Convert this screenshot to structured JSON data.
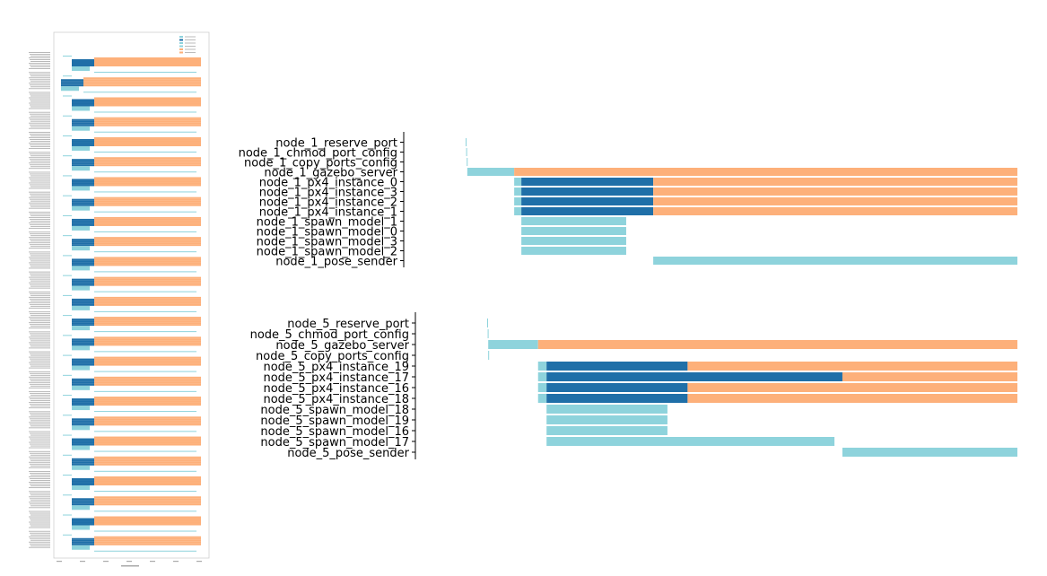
{
  "chart_data": [
    {
      "type": "gantt",
      "view": "overview",
      "title": "",
      "xlabel": "",
      "ylabel": "",
      "legend": {
        "placement": "top-right"
      },
      "series_colors": {
        "setup": "#8ed3dc",
        "px4": "#1f6fa8",
        "gazebo": "#fdb07a"
      },
      "groups": 25,
      "note_values": "Overview thumbnail; labels too small to read."
    },
    {
      "type": "gantt",
      "view": "detail",
      "title": "",
      "tasks": [
        {
          "label": "node_1_reserve_port",
          "segments": [
            {
              "start": 0.0,
              "end": 0.1,
              "kind": "setup"
            }
          ]
        },
        {
          "label": "node_1_chmod_port_config",
          "segments": [
            {
              "start": 0.1,
              "end": 0.2,
              "kind": "setup"
            }
          ]
        },
        {
          "label": "node_1_copy_ports_config",
          "segments": [
            {
              "start": 0.2,
              "end": 0.3,
              "kind": "setup"
            }
          ]
        },
        {
          "label": "node_1_gazebo_server",
          "segments": [
            {
              "start": 0.3,
              "end": 8.8,
              "kind": "setup"
            },
            {
              "start": 8.8,
              "end": 100.0,
              "kind": "gazebo"
            }
          ]
        },
        {
          "label": "node_1_px4_instance_0",
          "segments": [
            {
              "start": 8.8,
              "end": 10.1,
              "kind": "setup"
            },
            {
              "start": 10.1,
              "end": 34.0,
              "kind": "px4"
            },
            {
              "start": 34.0,
              "end": 100.0,
              "kind": "gazebo"
            }
          ]
        },
        {
          "label": "node_1_px4_instance_3",
          "segments": [
            {
              "start": 8.8,
              "end": 10.1,
              "kind": "setup"
            },
            {
              "start": 10.1,
              "end": 34.0,
              "kind": "px4"
            },
            {
              "start": 34.0,
              "end": 100.0,
              "kind": "gazebo"
            }
          ]
        },
        {
          "label": "node_1_px4_instance_2",
          "segments": [
            {
              "start": 8.8,
              "end": 10.1,
              "kind": "setup"
            },
            {
              "start": 10.1,
              "end": 34.0,
              "kind": "px4"
            },
            {
              "start": 34.0,
              "end": 100.0,
              "kind": "gazebo"
            }
          ]
        },
        {
          "label": "node_1_px4_instance_1",
          "segments": [
            {
              "start": 8.8,
              "end": 10.1,
              "kind": "setup"
            },
            {
              "start": 10.1,
              "end": 34.0,
              "kind": "px4"
            },
            {
              "start": 34.0,
              "end": 100.0,
              "kind": "gazebo"
            }
          ]
        },
        {
          "label": "node_1_spawn_model_1",
          "segments": [
            {
              "start": 10.1,
              "end": 29.1,
              "kind": "setup"
            }
          ]
        },
        {
          "label": "node_1_spawn_model_0",
          "segments": [
            {
              "start": 10.1,
              "end": 29.1,
              "kind": "setup"
            }
          ]
        },
        {
          "label": "node_1_spawn_model_3",
          "segments": [
            {
              "start": 10.1,
              "end": 29.1,
              "kind": "setup"
            }
          ]
        },
        {
          "label": "node_1_spawn_model_2",
          "segments": [
            {
              "start": 10.1,
              "end": 29.1,
              "kind": "setup"
            }
          ]
        },
        {
          "label": "node_1_pose_sender",
          "segments": [
            {
              "start": 34.0,
              "end": 100.0,
              "kind": "setup"
            }
          ]
        }
      ]
    },
    {
      "type": "gantt",
      "view": "detail",
      "title": "",
      "tasks": [
        {
          "label": "node_5_reserve_port",
          "segments": [
            {
              "start": 0.0,
              "end": 0.1,
              "kind": "setup"
            }
          ]
        },
        {
          "label": "node_5_chmod_port_config",
          "segments": [
            {
              "start": 0.1,
              "end": 0.2,
              "kind": "setup"
            }
          ]
        },
        {
          "label": "node_5_gazebo_server",
          "segments": [
            {
              "start": 0.2,
              "end": 9.6,
              "kind": "setup"
            },
            {
              "start": 9.6,
              "end": 100.0,
              "kind": "gazebo"
            }
          ]
        },
        {
          "label": "node_5_copy_ports_config",
          "segments": [
            {
              "start": 0.2,
              "end": 0.3,
              "kind": "setup"
            }
          ]
        },
        {
          "label": "node_5_px4_instance_19",
          "segments": [
            {
              "start": 9.6,
              "end": 11.2,
              "kind": "setup"
            },
            {
              "start": 11.2,
              "end": 37.8,
              "kind": "px4"
            },
            {
              "start": 37.8,
              "end": 100.0,
              "kind": "gazebo"
            }
          ]
        },
        {
          "label": "node_5_px4_instance_17",
          "segments": [
            {
              "start": 9.6,
              "end": 11.2,
              "kind": "setup"
            },
            {
              "start": 11.2,
              "end": 67.0,
              "kind": "px4"
            },
            {
              "start": 67.0,
              "end": 100.0,
              "kind": "gazebo"
            }
          ]
        },
        {
          "label": "node_5_px4_instance_16",
          "segments": [
            {
              "start": 9.6,
              "end": 11.2,
              "kind": "setup"
            },
            {
              "start": 11.2,
              "end": 37.8,
              "kind": "px4"
            },
            {
              "start": 37.8,
              "end": 100.0,
              "kind": "gazebo"
            }
          ]
        },
        {
          "label": "node_5_px4_instance_18",
          "segments": [
            {
              "start": 9.6,
              "end": 11.2,
              "kind": "setup"
            },
            {
              "start": 11.2,
              "end": 37.8,
              "kind": "px4"
            },
            {
              "start": 37.8,
              "end": 100.0,
              "kind": "gazebo"
            }
          ]
        },
        {
          "label": "node_5_spawn_model_18",
          "segments": [
            {
              "start": 11.2,
              "end": 34.0,
              "kind": "setup"
            }
          ]
        },
        {
          "label": "node_5_spawn_model_19",
          "segments": [
            {
              "start": 11.2,
              "end": 34.0,
              "kind": "setup"
            }
          ]
        },
        {
          "label": "node_5_spawn_model_16",
          "segments": [
            {
              "start": 11.2,
              "end": 34.0,
              "kind": "setup"
            }
          ]
        },
        {
          "label": "node_5_spawn_model_17",
          "segments": [
            {
              "start": 11.2,
              "end": 65.5,
              "kind": "setup"
            }
          ]
        },
        {
          "label": "node_5_pose_sender",
          "segments": [
            {
              "start": 67.0,
              "end": 100.0,
              "kind": "setup"
            }
          ]
        }
      ]
    }
  ]
}
